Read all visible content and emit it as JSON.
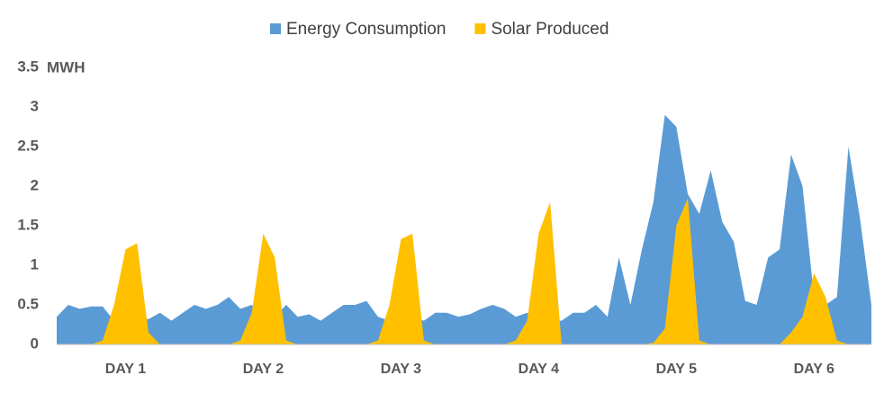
{
  "chart_data": {
    "type": "area",
    "y_label": "MWH",
    "x": [
      0,
      2,
      4,
      6,
      8,
      10,
      12,
      14,
      16,
      18,
      20,
      22,
      24,
      26,
      28,
      30,
      32,
      34,
      36,
      38,
      40,
      42,
      44,
      46,
      48,
      50,
      52,
      54,
      56,
      58,
      60,
      62,
      64,
      66,
      68,
      70,
      72,
      74,
      76,
      78,
      80,
      82,
      84,
      86,
      88,
      90,
      92,
      94,
      96,
      98,
      100,
      102,
      104,
      106,
      108,
      110,
      112,
      114,
      116,
      118,
      120,
      122,
      124,
      126,
      128,
      130,
      132,
      134,
      136,
      138,
      140,
      142
    ],
    "xlim": [
      0,
      142
    ],
    "xticks": [
      {
        "value": 12,
        "label": "DAY 1"
      },
      {
        "value": 36,
        "label": "DAY 2"
      },
      {
        "value": 60,
        "label": "DAY 3"
      },
      {
        "value": 84,
        "label": "DAY 4"
      },
      {
        "value": 108,
        "label": "DAY 5"
      },
      {
        "value": 132,
        "label": "DAY 6"
      }
    ],
    "ylim": [
      0,
      3.5
    ],
    "yticks": [
      0,
      0.5,
      1,
      1.5,
      2,
      2.5,
      3,
      3.5
    ],
    "grid": false,
    "legend": "top",
    "series": [
      {
        "name": "Energy Consumption",
        "color": "#5b9bd5",
        "values": [
          0.35,
          0.5,
          0.45,
          0.48,
          0.48,
          0.3,
          0.35,
          0.35,
          0.32,
          0.4,
          0.3,
          0.4,
          0.5,
          0.45,
          0.5,
          0.6,
          0.45,
          0.5,
          0.35,
          0.35,
          0.5,
          0.35,
          0.38,
          0.3,
          0.4,
          0.5,
          0.5,
          0.55,
          0.35,
          0.3,
          0.35,
          0.35,
          0.3,
          0.4,
          0.4,
          0.35,
          0.38,
          0.45,
          0.5,
          0.45,
          0.35,
          0.4,
          0.3,
          0.3,
          0.3,
          0.4,
          0.4,
          0.5,
          0.35,
          1.1,
          0.5,
          1.2,
          1.8,
          2.9,
          2.75,
          1.9,
          1.65,
          2.2,
          1.55,
          1.3,
          0.55,
          0.5,
          1.1,
          1.2,
          2.4,
          2.0,
          0.6,
          0.5,
          0.6,
          2.5,
          1.6,
          0.5
        ]
      },
      {
        "name": "Solar Produced",
        "color": "#ffc000",
        "values": [
          0,
          0,
          0,
          0,
          0.05,
          0.5,
          1.2,
          1.28,
          0.15,
          0,
          0,
          0,
          0,
          0,
          0,
          0,
          0.05,
          0.4,
          1.4,
          1.1,
          0.05,
          0,
          0,
          0,
          0,
          0,
          0,
          0,
          0.05,
          0.5,
          1.33,
          1.4,
          0.05,
          0,
          0,
          0,
          0,
          0,
          0,
          0,
          0.05,
          0.3,
          1.4,
          1.8,
          0,
          0,
          0,
          0,
          0,
          0,
          0,
          0,
          0.02,
          0.2,
          1.5,
          1.85,
          0.05,
          0,
          0,
          0,
          0,
          0,
          0,
          0,
          0.15,
          0.35,
          0.9,
          0.6,
          0.05,
          0,
          0,
          0
        ]
      }
    ]
  }
}
